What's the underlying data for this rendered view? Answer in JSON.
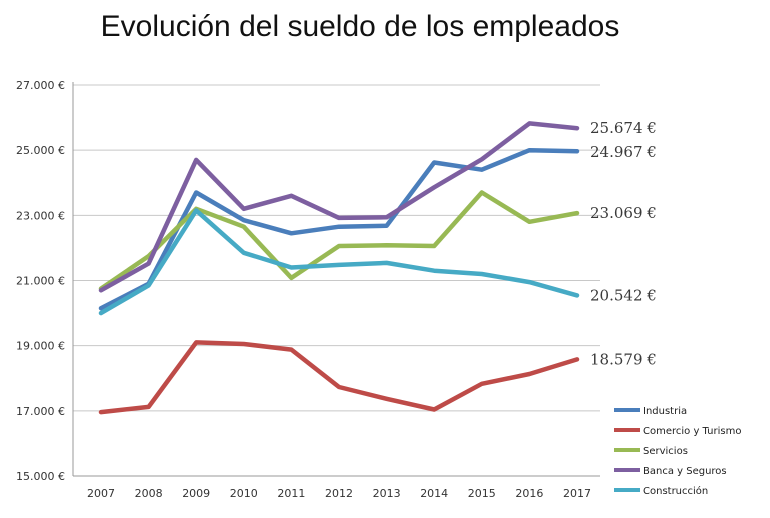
{
  "chart_data": {
    "type": "line",
    "title": "Evolución del sueldo de los empleados",
    "xlabel": "",
    "ylabel": "",
    "categories": [
      "2007",
      "2008",
      "2009",
      "2010",
      "2011",
      "2012",
      "2013",
      "2014",
      "2015",
      "2016",
      "2017"
    ],
    "ylim": [
      15000,
      27000
    ],
    "yticks": [
      15000,
      17000,
      19000,
      21000,
      23000,
      25000,
      27000
    ],
    "ytick_labels": [
      "15.000 €",
      "17.000 €",
      "19.000 €",
      "21.000 €",
      "23.000 €",
      "25.000 €",
      "27.000 €"
    ],
    "grid": true,
    "legend_position": "bottom-right",
    "series": [
      {
        "name": "Industria",
        "color": "#4a7ebb",
        "values": [
          20150,
          20900,
          23700,
          22850,
          22450,
          22650,
          22680,
          24620,
          24400,
          25000,
          24967
        ],
        "end_label": "24.967 €"
      },
      {
        "name": "Comercio y Turismo",
        "color": "#be4b48",
        "values": [
          16960,
          17120,
          19100,
          19050,
          18880,
          17730,
          17370,
          17040,
          17830,
          18130,
          18579
        ],
        "end_label": "18.579 €"
      },
      {
        "name": "Servicios",
        "color": "#98b954",
        "values": [
          20750,
          21750,
          23200,
          22650,
          21080,
          22060,
          22080,
          22060,
          23700,
          22800,
          23069
        ],
        "end_label": "23.069 €"
      },
      {
        "name": "Banca y Seguros",
        "color": "#7d5fa0",
        "values": [
          20700,
          21520,
          24700,
          23200,
          23600,
          22920,
          22940,
          23860,
          24720,
          25820,
          25674
        ],
        "end_label": "25.674 €"
      },
      {
        "name": "Construcción",
        "color": "#46aac5",
        "values": [
          20000,
          20850,
          23150,
          21850,
          21400,
          21480,
          21540,
          21300,
          21200,
          20950,
          20542
        ],
        "end_label": "20.542 €"
      }
    ]
  }
}
